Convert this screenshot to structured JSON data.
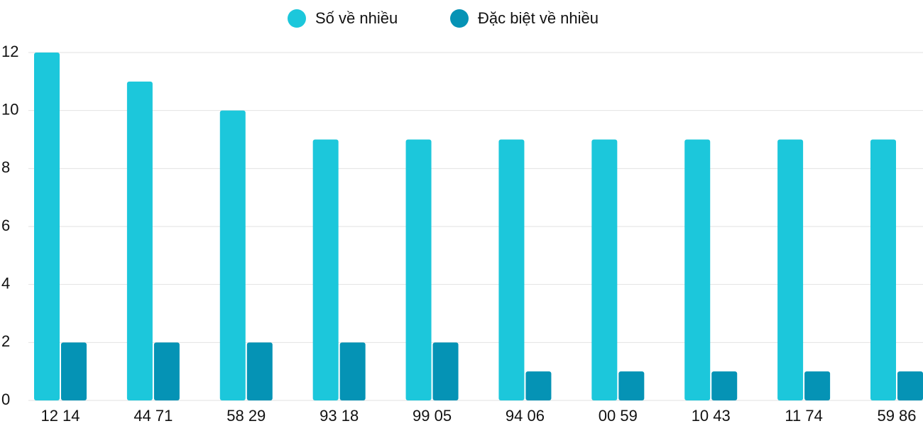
{
  "chart_data": {
    "type": "bar",
    "categories": [
      "12 14",
      "44 71",
      "58 29",
      "93 18",
      "99 05",
      "94 06",
      "00 59",
      "10 43",
      "11 74",
      "59 86"
    ],
    "series": [
      {
        "name": "Số về nhiều",
        "color": "#1cc7db",
        "values": [
          12,
          11,
          10,
          9,
          9,
          9,
          9,
          9,
          9,
          9
        ]
      },
      {
        "name": "Đặc biệt về nhiều",
        "color": "#0593b5",
        "values": [
          2,
          2,
          2,
          2,
          2,
          1,
          1,
          1,
          1,
          1
        ]
      }
    ],
    "ylim": [
      0,
      12
    ],
    "yticks": [
      0,
      2,
      4,
      6,
      8,
      10,
      12
    ],
    "grid": true,
    "legend": "top"
  }
}
